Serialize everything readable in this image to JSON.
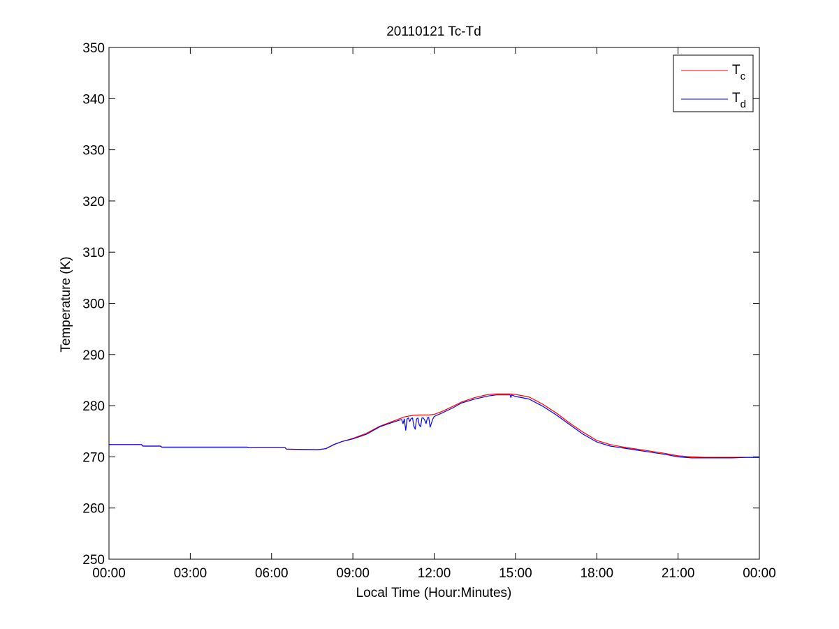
{
  "chart_data": {
    "type": "line",
    "title": "20110121 Tc-Td",
    "xlabel": "Local Time (Hour:Minutes)",
    "ylabel": "Temperature (K)",
    "x_unit": "hours",
    "xlim": [
      0,
      24
    ],
    "ylim": [
      250,
      350
    ],
    "x_tick_values": [
      0,
      3,
      6,
      9,
      12,
      15,
      18,
      21,
      24
    ],
    "x_tick_labels": [
      "00:00",
      "03:00",
      "06:00",
      "09:00",
      "12:00",
      "15:00",
      "18:00",
      "21:00",
      "00:00"
    ],
    "y_ticks": [
      250,
      260,
      270,
      280,
      290,
      300,
      310,
      320,
      330,
      340,
      350
    ],
    "grid": false,
    "legend_position": "top-right",
    "series": [
      {
        "name": "T",
        "subscript": "c",
        "color": "#ff0000",
        "x": [
          0,
          1.2,
          1.25,
          1.9,
          1.95,
          5.1,
          5.15,
          6.5,
          6.55,
          7.7,
          8.0,
          8.3,
          8.6,
          9.0,
          9.5,
          10.0,
          10.5,
          10.9,
          11.2,
          11.5,
          11.8,
          12.0,
          12.3,
          12.7,
          13.0,
          13.5,
          14.0,
          14.3,
          14.8,
          15.0,
          15.5,
          16.0,
          16.5,
          17.0,
          17.5,
          18.0,
          18.5,
          19.0,
          19.5,
          20.0,
          20.5,
          21.0,
          21.5,
          22.0,
          23.0,
          24.0
        ],
        "y": [
          272.4,
          272.4,
          272.1,
          272.1,
          271.9,
          271.9,
          271.8,
          271.8,
          271.5,
          271.4,
          271.6,
          272.4,
          273.0,
          273.6,
          274.6,
          276.0,
          277.0,
          277.8,
          278.1,
          278.2,
          278.2,
          278.3,
          278.9,
          279.9,
          280.7,
          281.6,
          282.2,
          282.3,
          282.3,
          282.2,
          281.7,
          280.3,
          278.6,
          276.6,
          274.8,
          273.2,
          272.4,
          271.9,
          271.5,
          271.1,
          270.7,
          270.2,
          270.0,
          269.9,
          269.9,
          269.9
        ]
      },
      {
        "name": "T",
        "subscript": "d",
        "color": "#0000ff",
        "x": [
          0,
          1.2,
          1.25,
          1.9,
          1.95,
          5.1,
          5.15,
          6.5,
          6.55,
          7.7,
          8.0,
          8.3,
          8.6,
          9.0,
          9.5,
          10.0,
          10.5,
          10.8,
          10.85,
          10.9,
          10.95,
          11.0,
          11.05,
          11.1,
          11.15,
          11.2,
          11.25,
          11.3,
          11.35,
          11.4,
          11.45,
          11.5,
          11.55,
          11.6,
          11.65,
          11.7,
          11.75,
          11.8,
          11.85,
          11.9,
          11.95,
          12.0,
          12.3,
          12.7,
          13.0,
          13.5,
          14.0,
          14.3,
          14.8,
          14.83,
          14.86,
          15.0,
          15.5,
          16.0,
          16.5,
          17.0,
          17.5,
          18.0,
          18.5,
          19.0,
          19.5,
          20.0,
          20.5,
          21.0,
          21.5,
          22.0,
          23.0,
          23.5,
          24.0
        ],
        "y": [
          272.4,
          272.4,
          272.1,
          272.1,
          271.9,
          271.9,
          271.8,
          271.8,
          271.5,
          271.4,
          271.6,
          272.4,
          273.0,
          273.5,
          274.4,
          275.9,
          276.8,
          277.3,
          276.5,
          277.4,
          275.2,
          277.4,
          277.6,
          276.9,
          277.5,
          277.6,
          276.0,
          275.4,
          277.4,
          277.6,
          276.2,
          275.9,
          277.6,
          277.6,
          277.2,
          276.5,
          277.6,
          277.7,
          275.8,
          276.6,
          277.4,
          277.9,
          278.6,
          279.6,
          280.5,
          281.3,
          281.9,
          282.1,
          282.1,
          281.6,
          282.1,
          281.8,
          281.3,
          279.9,
          278.2,
          276.3,
          274.4,
          272.9,
          272.1,
          271.7,
          271.3,
          270.9,
          270.5,
          270.0,
          269.8,
          269.8,
          269.8,
          269.9,
          269.9
        ]
      }
    ]
  }
}
